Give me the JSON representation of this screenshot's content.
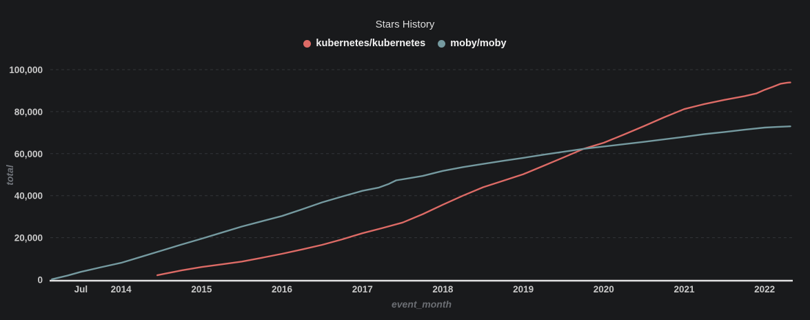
{
  "title": "Stars History",
  "colors": {
    "background": "#191a1c",
    "axis_line": "#e3e3e3",
    "gridline": "#323539",
    "tick_label": "#c9c9c9",
    "axis_name": "#6f7378",
    "kubernetes": "#dd6b66",
    "moby": "#759aa0"
  },
  "legend": {
    "items": [
      {
        "label": "kubernetes/kubernetes",
        "color": "#dd6b66"
      },
      {
        "label": "moby/moby",
        "color": "#759aa0"
      }
    ]
  },
  "chart_data": {
    "type": "line",
    "title": "Stars History",
    "xlabel": "event_month",
    "ylabel": "total",
    "grid": true,
    "legend_position": "top",
    "x_range": [
      2013.12,
      2022.35
    ],
    "y_range": [
      0,
      100000
    ],
    "x_ticks": [
      {
        "label": "Jul",
        "year": 2013.5
      },
      {
        "label": "2014",
        "year": 2014
      },
      {
        "label": "2015",
        "year": 2015
      },
      {
        "label": "2016",
        "year": 2016
      },
      {
        "label": "2017",
        "year": 2017
      },
      {
        "label": "2018",
        "year": 2018
      },
      {
        "label": "2019",
        "year": 2019
      },
      {
        "label": "2020",
        "year": 2020
      },
      {
        "label": "2021",
        "year": 2021
      },
      {
        "label": "2022",
        "year": 2022
      }
    ],
    "y_ticks": [
      {
        "label": "0",
        "value": 0
      },
      {
        "label": "20,000",
        "value": 20000
      },
      {
        "label": "40,000",
        "value": 40000
      },
      {
        "label": "60,000",
        "value": 60000
      },
      {
        "label": "80,000",
        "value": 80000
      },
      {
        "label": "100,000",
        "value": 100000
      }
    ],
    "series": [
      {
        "name": "kubernetes/kubernetes",
        "color": "#dd6b66",
        "points": [
          [
            2014.45,
            2100
          ],
          [
            2014.55,
            2900
          ],
          [
            2014.75,
            4400
          ],
          [
            2015.0,
            6000
          ],
          [
            2015.25,
            7300
          ],
          [
            2015.5,
            8600
          ],
          [
            2015.75,
            10400
          ],
          [
            2016.0,
            12300
          ],
          [
            2016.25,
            14400
          ],
          [
            2016.5,
            16600
          ],
          [
            2016.75,
            19200
          ],
          [
            2017.0,
            22100
          ],
          [
            2017.25,
            24600
          ],
          [
            2017.5,
            27200
          ],
          [
            2017.75,
            31200
          ],
          [
            2018.0,
            35700
          ],
          [
            2018.25,
            40000
          ],
          [
            2018.5,
            44000
          ],
          [
            2018.75,
            47100
          ],
          [
            2019.0,
            50200
          ],
          [
            2019.25,
            54200
          ],
          [
            2019.5,
            58200
          ],
          [
            2019.75,
            62300
          ],
          [
            2020.0,
            65200
          ],
          [
            2020.25,
            69100
          ],
          [
            2020.5,
            73100
          ],
          [
            2020.75,
            77300
          ],
          [
            2021.0,
            81200
          ],
          [
            2021.25,
            83600
          ],
          [
            2021.5,
            85600
          ],
          [
            2021.75,
            87400
          ],
          [
            2021.9,
            88700
          ],
          [
            2022.0,
            90400
          ],
          [
            2022.1,
            91800
          ],
          [
            2022.2,
            93300
          ],
          [
            2022.28,
            93800
          ],
          [
            2022.32,
            93900
          ]
        ]
      },
      {
        "name": "moby/moby",
        "color": "#759aa0",
        "points": [
          [
            2013.14,
            200
          ],
          [
            2013.33,
            1900
          ],
          [
            2013.5,
            3700
          ],
          [
            2013.75,
            5900
          ],
          [
            2014.0,
            8000
          ],
          [
            2014.25,
            10900
          ],
          [
            2014.5,
            13800
          ],
          [
            2014.75,
            16700
          ],
          [
            2015.0,
            19500
          ],
          [
            2015.25,
            22400
          ],
          [
            2015.5,
            25300
          ],
          [
            2015.75,
            27800
          ],
          [
            2016.0,
            30300
          ],
          [
            2016.25,
            33500
          ],
          [
            2016.5,
            36800
          ],
          [
            2016.75,
            39600
          ],
          [
            2017.0,
            42300
          ],
          [
            2017.2,
            43800
          ],
          [
            2017.33,
            45600
          ],
          [
            2017.42,
            47300
          ],
          [
            2017.58,
            48300
          ],
          [
            2017.75,
            49400
          ],
          [
            2018.0,
            51800
          ],
          [
            2018.25,
            53600
          ],
          [
            2018.5,
            55100
          ],
          [
            2018.75,
            56600
          ],
          [
            2019.0,
            58000
          ],
          [
            2019.25,
            59500
          ],
          [
            2019.5,
            60900
          ],
          [
            2019.75,
            62300
          ],
          [
            2020.0,
            63400
          ],
          [
            2020.25,
            64500
          ],
          [
            2020.5,
            65600
          ],
          [
            2020.75,
            66800
          ],
          [
            2021.0,
            68000
          ],
          [
            2021.25,
            69300
          ],
          [
            2021.5,
            70300
          ],
          [
            2021.75,
            71400
          ],
          [
            2022.0,
            72400
          ],
          [
            2022.15,
            72700
          ],
          [
            2022.32,
            73000
          ]
        ]
      }
    ]
  }
}
